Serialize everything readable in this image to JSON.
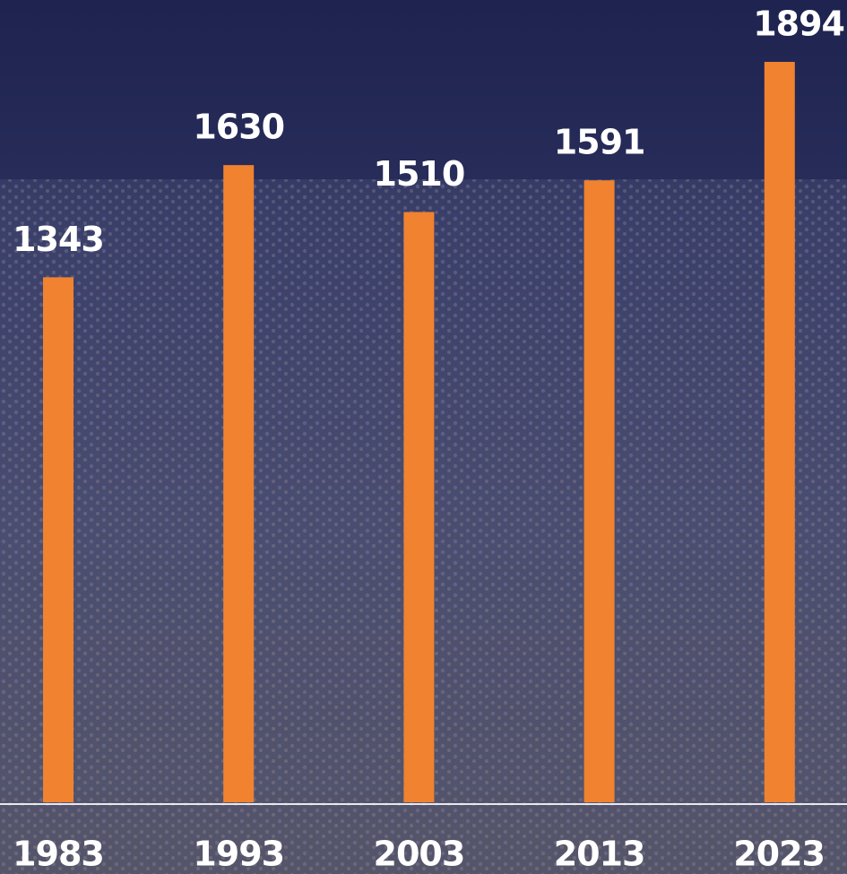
{
  "chart_data": {
    "type": "bar",
    "categories": [
      "1983",
      "1993",
      "2003",
      "2013",
      "2023"
    ],
    "values": [
      1343,
      1630,
      1510,
      1591,
      1894
    ],
    "color": "#f08230",
    "ylim": [
      0,
      2050
    ]
  }
}
